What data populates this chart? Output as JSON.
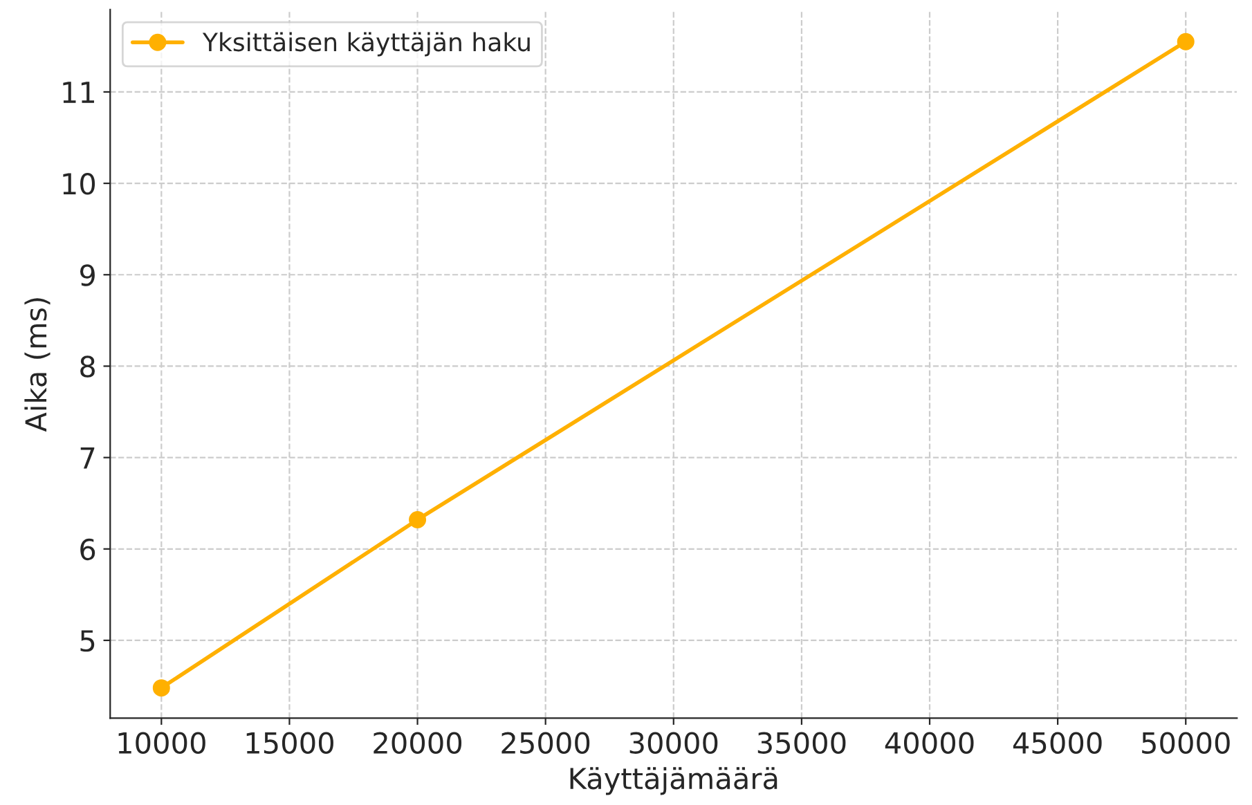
{
  "chart_data": {
    "type": "line",
    "xlabel": "Käyttäjämäärä",
    "ylabel": "Aika (ms)",
    "x": [
      10000,
      20000,
      50000
    ],
    "series": [
      {
        "name": "Yksittäisen käyttäjän haku",
        "color": "#ffb000",
        "values": [
          4.48,
          6.32,
          11.55
        ]
      }
    ],
    "xlim": [
      8000,
      52000
    ],
    "xticks": [
      10000,
      15000,
      20000,
      25000,
      30000,
      35000,
      40000,
      45000,
      50000
    ],
    "ylim": [
      4.15,
      11.9
    ],
    "yticks": [
      5,
      6,
      7,
      8,
      9,
      10,
      11
    ],
    "grid": true,
    "legend": "top left",
    "marker": "circle",
    "line_style": "solid"
  }
}
